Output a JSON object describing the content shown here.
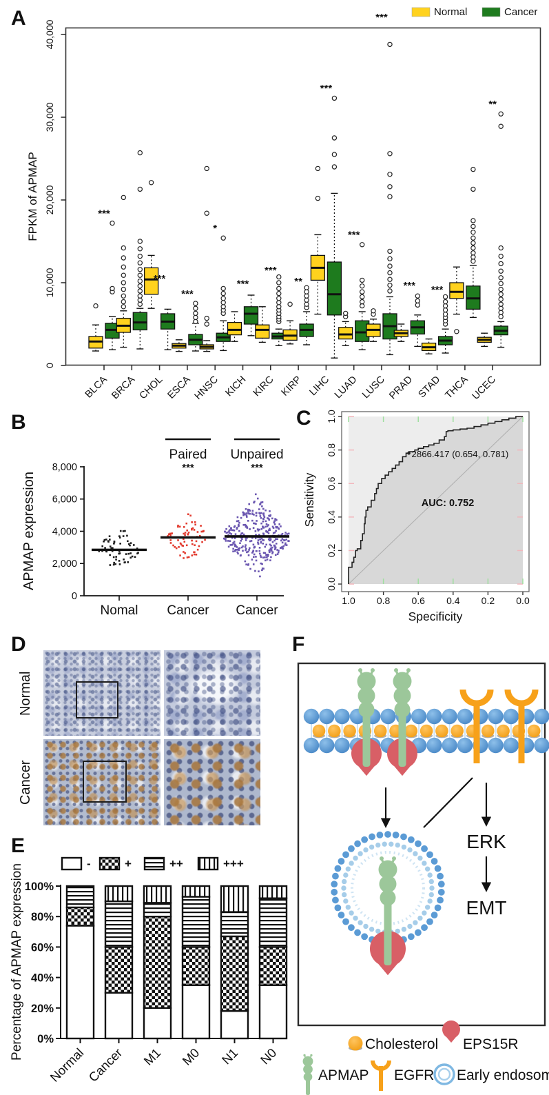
{
  "figure": {
    "panel_a": {
      "label": "A",
      "legend": [
        {
          "label": "Normal",
          "color": "#ffd21e"
        },
        {
          "label": "Cancer",
          "color": "#1e7b1e"
        }
      ],
      "ylabel": "FPKM of APMAP",
      "yticks": [
        "0",
        "10,000",
        "20,000",
        "30,000",
        "40,000"
      ]
    },
    "panel_b": {
      "label": "B",
      "ylabel": "APMAP expression",
      "yticks": [
        "0",
        "2,000",
        "4,000",
        "6,000",
        "8,000"
      ],
      "categories": [
        "Nomal",
        "Cancer",
        "Cancer"
      ]
    },
    "panel_c": {
      "label": "C",
      "xlabel": "Specificity",
      "ylabel": "Sensitivity",
      "xticks": [
        "1.0",
        "0.8",
        "0.6",
        "0.4",
        "0.2",
        "0.0"
      ],
      "yticks": [
        "0.0",
        "0.2",
        "0.4",
        "0.6",
        "0.8",
        "1.0"
      ],
      "cutoff_label": "2866.417 (0.654, 0.781)",
      "auc_label": "AUC: 0.752"
    },
    "panel_d": {
      "label": "D",
      "row_labels": {
        "top": "Normal",
        "bottom": "Cancer"
      }
    },
    "panel_e": {
      "label": "E",
      "ylabel": "Percentage of APMAP expression",
      "yticks": [
        "0%",
        "20%",
        "40%",
        "60%",
        "80%",
        "100%"
      ]
    },
    "panel_f": {
      "label": "F",
      "pathway_labels": {
        "erk": "ERK",
        "emt": "EMT"
      },
      "legend": [
        {
          "icon": "cholesterol-icon",
          "label": "Cholesterol"
        },
        {
          "icon": "eps15r-icon",
          "label": "EPS15R"
        },
        {
          "icon": "apmap-icon",
          "label": "APMAP"
        },
        {
          "icon": "egfr-icon",
          "label": "EGFR"
        },
        {
          "icon": "early-endosome-icon",
          "label": "Early endosome"
        }
      ],
      "colors": {
        "membrane_blue": "#4a8fd0",
        "cholesterol": "#f6a51c",
        "apmap_green": "#9cc79a",
        "eps15r_red": "#d85f66",
        "egfr_orange": "#f7a11a",
        "endosome_outer": "#5b9bd5",
        "endosome_inner": "#a6cde9"
      }
    }
  },
  "chart_data": [
    {
      "id": "A",
      "type": "grouped_boxplot",
      "title": "",
      "xlabel": "",
      "ylabel": "FPKM of APMAP",
      "ylim": [
        0,
        40000
      ],
      "series_names": [
        "Normal",
        "Cancer"
      ],
      "series_colors": [
        "#ffd21e",
        "#1e7b1e"
      ],
      "groups": [
        {
          "name": "BLCA",
          "sig": "***",
          "sig_at": 18300,
          "normal": {
            "lo": 1750,
            "q1": 2100,
            "med": 2900,
            "q3": 3500,
            "hi": 4900,
            "out": [
              7200
            ]
          },
          "cancer": {
            "lo": 1900,
            "q1": 3300,
            "med": 4300,
            "q3": 5100,
            "hi": 5900,
            "out": [
              8900,
              9300,
              17200
            ]
          }
        },
        {
          "name": "BRCA",
          "sig": "",
          "sig_at": 0,
          "normal": {
            "lo": 2200,
            "q1": 4000,
            "med": 4800,
            "q3": 5700,
            "hi": 6600,
            "out": [
              7100,
              7700,
              8400,
              9200,
              10000,
              10900,
              11900,
              13000,
              14200,
              20300
            ]
          },
          "cancer": {
            "lo": 2000,
            "q1": 4300,
            "med": 5200,
            "q3": 6400,
            "hi": 6900,
            "out": [
              7400,
              7900,
              8400,
              9000,
              9600,
              10200,
              10900,
              11600,
              12400,
              13200,
              14100,
              15000,
              21300,
              25700
            ]
          }
        },
        {
          "name": "CHOL",
          "sig": "***",
          "sig_at": 10400,
          "normal": {
            "lo": 6900,
            "q1": 8600,
            "med": 10400,
            "q3": 11800,
            "hi": 13300,
            "out": [
              22100
            ]
          },
          "cancer": {
            "lo": 1900,
            "q1": 4400,
            "med": 5300,
            "q3": 6250,
            "hi": 6800,
            "out": []
          }
        },
        {
          "name": "ESCA",
          "sig": "***",
          "sig_at": 8600,
          "normal": {
            "lo": 1700,
            "q1": 2100,
            "med": 2400,
            "q3": 2650,
            "hi": 3100,
            "out": []
          },
          "cancer": {
            "lo": 1750,
            "q1": 2500,
            "med": 3100,
            "q3": 3750,
            "hi": 5100,
            "out": [
              5300,
              5800,
              6300,
              6900,
              7500
            ]
          }
        },
        {
          "name": "HNSC",
          "sig": "*",
          "sig_at": 16500,
          "normal": {
            "lo": 1700,
            "q1": 2000,
            "med": 2250,
            "q3": 2500,
            "hi": 3000,
            "out": [
              5000,
              5700,
              18400,
              23800
            ]
          },
          "cancer": {
            "lo": 1800,
            "q1": 2900,
            "med": 3400,
            "q3": 3900,
            "hi": 5400,
            "out": [
              6300,
              6700,
              7100,
              7600,
              8100,
              8700,
              9300,
              15400
            ]
          }
        },
        {
          "name": "KICH",
          "sig": "***",
          "sig_at": 9800,
          "normal": {
            "lo": 2900,
            "q1": 3700,
            "med": 4300,
            "q3": 5200,
            "hi": 6500,
            "out": []
          },
          "cancer": {
            "lo": 3600,
            "q1": 5000,
            "med": 6250,
            "q3": 7100,
            "hi": 8500,
            "out": []
          }
        },
        {
          "name": "KIRC",
          "sig": "***",
          "sig_at": 11400,
          "normal": {
            "lo": 2800,
            "q1": 3300,
            "med": 4300,
            "q3": 4900,
            "hi": 7100,
            "out": []
          },
          "cancer": {
            "lo": 2400,
            "q1": 3200,
            "med": 3500,
            "q3": 3900,
            "hi": 4400,
            "out": [
              5300,
              5600,
              5900,
              6300,
              6700,
              7100,
              7600,
              8100,
              8700,
              9300,
              10000,
              10700
            ]
          }
        },
        {
          "name": "KIRP",
          "sig": "**",
          "sig_at": 10100,
          "normal": {
            "lo": 2600,
            "q1": 3050,
            "med": 3600,
            "q3": 4300,
            "hi": 5400,
            "out": [
              7400
            ]
          },
          "cancer": {
            "lo": 2500,
            "q1": 3500,
            "med": 4300,
            "q3": 5000,
            "hi": 6500,
            "out": [
              7000,
              7400,
              7900,
              8400,
              8900,
              9400
            ]
          }
        },
        {
          "name": "LIHC",
          "sig": "***",
          "sig_at": 33400,
          "normal": {
            "lo": 6200,
            "q1": 10300,
            "med": 11800,
            "q3": 13300,
            "hi": 15800,
            "out": [
              20200,
              23800
            ]
          },
          "cancer": {
            "lo": 900,
            "q1": 6100,
            "med": 8600,
            "q3": 12500,
            "hi": 20800,
            "out": [
              24000,
              25500,
              27500,
              32300
            ]
          }
        },
        {
          "name": "LUAD",
          "sig": "***",
          "sig_at": 15700,
          "normal": {
            "lo": 2400,
            "q1": 3200,
            "med": 3750,
            "q3": 4600,
            "hi": 5300,
            "out": [
              5900,
              6300
            ]
          },
          "cancer": {
            "lo": 1900,
            "q1": 2900,
            "med": 4000,
            "q3": 5400,
            "hi": 6500,
            "out": [
              7200,
              7700,
              8300,
              8900,
              9600,
              10300,
              14600
            ]
          }
        },
        {
          "name": "LUSC",
          "sig": "***",
          "sig_at": 42000,
          "normal": {
            "lo": 2900,
            "q1": 3500,
            "med": 4300,
            "q3": 5000,
            "hi": 5600,
            "out": [
              6200,
              6600
            ]
          },
          "cancer": {
            "lo": 1300,
            "q1": 3200,
            "med": 4750,
            "q3": 6250,
            "hi": 8300,
            "out": [
              9000,
              9700,
              10400,
              11200,
              12000,
              12900,
              13800,
              20400,
              21600,
              23100,
              25600,
              38800
            ]
          }
        },
        {
          "name": "PRAD",
          "sig": "***",
          "sig_at": 9600,
          "normal": {
            "lo": 2900,
            "q1": 3500,
            "med": 3900,
            "q3": 4250,
            "hi": 5000,
            "out": []
          },
          "cancer": {
            "lo": 2300,
            "q1": 3800,
            "med": 4600,
            "q3": 5400,
            "hi": 6100,
            "out": [
              7300,
              7800,
              8400
            ]
          }
        },
        {
          "name": "STAD",
          "sig": "***",
          "sig_at": 9100,
          "normal": {
            "lo": 1400,
            "q1": 1800,
            "med": 2200,
            "q3": 2700,
            "hi": 3200,
            "out": []
          },
          "cancer": {
            "lo": 1500,
            "q1": 2500,
            "med": 3000,
            "q3": 3500,
            "hi": 4400,
            "out": [
              5000,
              5400,
              5800,
              6200,
              6700,
              7200,
              7700,
              8300
            ]
          }
        },
        {
          "name": "THCA",
          "sig": "",
          "sig_at": 0,
          "normal": {
            "lo": 6200,
            "q1": 8100,
            "med": 8900,
            "q3": 10000,
            "hi": 11900,
            "out": [
              4100
            ]
          },
          "cancer": {
            "lo": 5800,
            "q1": 6800,
            "med": 8100,
            "q3": 9600,
            "hi": 12100,
            "out": [
              12600,
              13100,
              13600,
              14200,
              14800,
              15400,
              16100,
              16800,
              17500,
              21300,
              23700
            ]
          }
        },
        {
          "name": "UCEC",
          "sig": "**",
          "sig_at": 31500,
          "normal": {
            "lo": 2300,
            "q1": 2800,
            "med": 3100,
            "q3": 3400,
            "hi": 3900,
            "out": []
          },
          "cancer": {
            "lo": 2200,
            "q1": 3700,
            "med": 4200,
            "q3": 4750,
            "hi": 5300,
            "out": [
              5900,
              6400,
              6900,
              7400,
              8000,
              8600,
              9200,
              9900,
              10600,
              11400,
              12300,
              13200,
              14200,
              28900,
              30400
            ]
          }
        }
      ]
    },
    {
      "id": "B",
      "type": "scatter",
      "ylabel": "APMAP expression",
      "ylim": [
        0,
        8000
      ],
      "groups": [
        {
          "label": "Nomal",
          "title": "",
          "sig": "",
          "color": "#1c1c1c",
          "n": 62,
          "median": 2850,
          "sd": 620,
          "min": 1300,
          "max": 5100
        },
        {
          "label": "Cancer",
          "title": "Paired",
          "sig": "***",
          "color": "#e23a2e",
          "n": 68,
          "median": 3620,
          "sd": 640,
          "min": 1450,
          "max": 5500
        },
        {
          "label": "Cancer",
          "title": "Unpaired",
          "sig": "***",
          "color": "#6a56b0",
          "n": 340,
          "median": 3680,
          "sd": 950,
          "min": 1200,
          "max": 7600
        }
      ]
    },
    {
      "id": "C",
      "type": "line",
      "xlabel": "Specificity",
      "ylabel": "Sensitivity",
      "x_reversed": true,
      "xlim": [
        1.0,
        0.0
      ],
      "ylim": [
        0.0,
        1.0
      ],
      "auc": 0.752,
      "cutoff": {
        "value": 2866.417,
        "specificity": 0.654,
        "sensitivity": 0.781
      },
      "roc": [
        [
          1.0,
          0.0
        ],
        [
          1.0,
          0.08
        ],
        [
          0.98,
          0.1
        ],
        [
          0.97,
          0.13
        ],
        [
          0.96,
          0.16
        ],
        [
          0.95,
          0.2
        ],
        [
          0.93,
          0.21
        ],
        [
          0.92,
          0.26
        ],
        [
          0.91,
          0.3
        ],
        [
          0.905,
          0.36
        ],
        [
          0.9,
          0.4
        ],
        [
          0.89,
          0.44
        ],
        [
          0.87,
          0.46
        ],
        [
          0.85,
          0.5
        ],
        [
          0.84,
          0.54
        ],
        [
          0.83,
          0.57
        ],
        [
          0.81,
          0.6
        ],
        [
          0.79,
          0.63
        ],
        [
          0.77,
          0.65
        ],
        [
          0.75,
          0.67
        ],
        [
          0.73,
          0.69
        ],
        [
          0.71,
          0.71
        ],
        [
          0.69,
          0.73
        ],
        [
          0.67,
          0.76
        ],
        [
          0.654,
          0.781
        ],
        [
          0.62,
          0.79
        ],
        [
          0.6,
          0.8
        ],
        [
          0.57,
          0.81
        ],
        [
          0.54,
          0.82
        ],
        [
          0.51,
          0.83
        ],
        [
          0.48,
          0.84
        ],
        [
          0.45,
          0.86
        ],
        [
          0.44,
          0.88
        ],
        [
          0.43,
          0.91
        ],
        [
          0.4,
          0.915
        ],
        [
          0.36,
          0.92
        ],
        [
          0.32,
          0.925
        ],
        [
          0.28,
          0.93
        ],
        [
          0.24,
          0.94
        ],
        [
          0.2,
          0.95
        ],
        [
          0.16,
          0.96
        ],
        [
          0.12,
          0.97
        ],
        [
          0.08,
          0.98
        ],
        [
          0.04,
          0.99
        ],
        [
          0.0,
          1.0
        ]
      ]
    },
    {
      "id": "E",
      "type": "bar",
      "stacked": true,
      "categories": [
        "Normal",
        "Cancer",
        "M1",
        "M0",
        "N1",
        "N0"
      ],
      "series": [
        {
          "name": "-",
          "pattern": "plain",
          "values": [
            74,
            30,
            20,
            35,
            18,
            35
          ]
        },
        {
          "name": "+",
          "pattern": "check",
          "values": [
            12,
            30,
            60,
            25,
            49,
            25
          ]
        },
        {
          "name": "++",
          "pattern": "hlines",
          "values": [
            14,
            30,
            9,
            33,
            16,
            32
          ]
        },
        {
          "name": "+++",
          "pattern": "vlines",
          "values": [
            0,
            10,
            11,
            7,
            17,
            8
          ]
        }
      ],
      "ylabel": "Percentage of APMAP expression",
      "ylim": [
        0,
        100
      ]
    }
  ]
}
